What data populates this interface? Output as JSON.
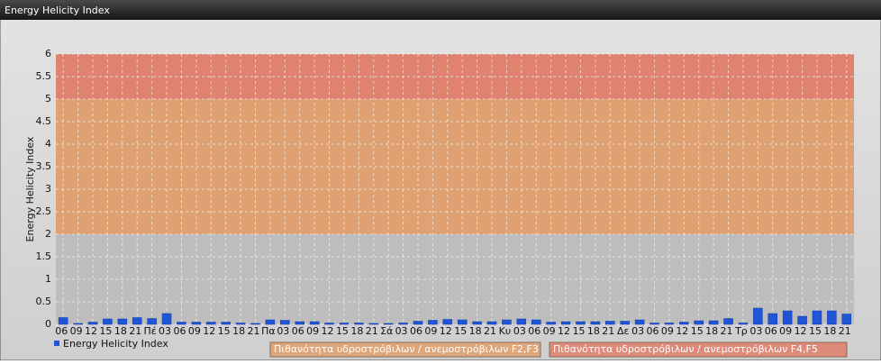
{
  "chart_data": {
    "type": "bar",
    "title": "Energy Helicity Index",
    "y_label": "Energy Helicity Index",
    "categories": [
      "06",
      "09",
      "12",
      "15",
      "18",
      "21",
      "Πέ",
      "03",
      "06",
      "09",
      "12",
      "15",
      "18",
      "21",
      "Πα",
      "03",
      "06",
      "09",
      "12",
      "15",
      "18",
      "21",
      "Σά",
      "03",
      "06",
      "09",
      "12",
      "15",
      "18",
      "21",
      "Κυ",
      "03",
      "06",
      "09",
      "12",
      "15",
      "18",
      "21",
      "Δε",
      "03",
      "06",
      "09",
      "12",
      "15",
      "18",
      "21",
      "Τρ",
      "03",
      "06",
      "09",
      "12",
      "15",
      "18",
      "21"
    ],
    "series": [
      {
        "name": "Energy Helicity Index",
        "color": "#1f55d6",
        "values": [
          0.15,
          0.02,
          0.05,
          0.12,
          0.12,
          0.15,
          0.13,
          0.24,
          0.05,
          0.05,
          0.05,
          0.05,
          0.03,
          0.02,
          0.1,
          0.09,
          0.06,
          0.06,
          0.03,
          0.03,
          0.03,
          0.02,
          0.02,
          0.03,
          0.07,
          0.09,
          0.11,
          0.1,
          0.06,
          0.06,
          0.1,
          0.12,
          0.1,
          0.05,
          0.06,
          0.06,
          0.06,
          0.07,
          0.07,
          0.1,
          0.03,
          0.03,
          0.05,
          0.08,
          0.08,
          0.13,
          0.03,
          0.36,
          0.24,
          0.3,
          0.18,
          0.3,
          0.3,
          0.23
        ]
      }
    ],
    "bands": [
      {
        "from": 0,
        "to": 2,
        "color": "#bdbdbd"
      },
      {
        "from": 2,
        "to": 5,
        "color": "#dfa171",
        "name": "Πιθανότητα υδροστρόβιλων / ανεμοστρόβιλων F2,F3"
      },
      {
        "from": 5,
        "to": 6,
        "color": "#df8270",
        "name": "Πιθανότητα υδροστρόβιλων / ανεμοστρόβιλων F4,F5"
      }
    ],
    "ylim": [
      0,
      6
    ],
    "yticks": [
      0,
      0.5,
      1,
      1.5,
      2,
      2.5,
      3,
      3.5,
      4,
      4.5,
      5,
      5.5,
      6
    ],
    "grid": true
  }
}
